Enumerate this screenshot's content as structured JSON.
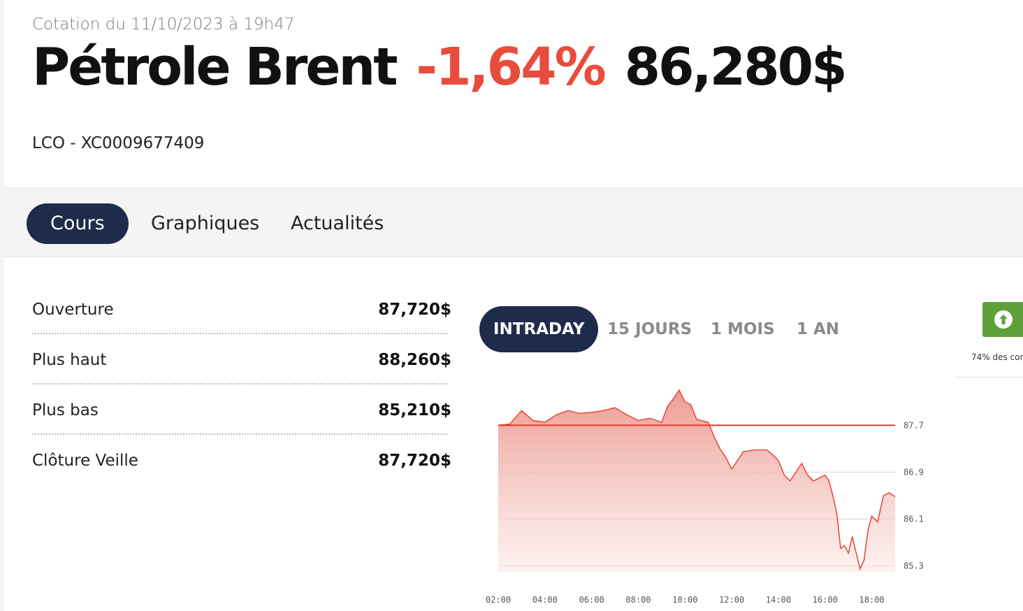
{
  "header": {
    "quote_date": "Cotation du 11/10/2023 à 19h47",
    "name": "Pétrole Brent",
    "change": "-1,64%",
    "price": "86,280$",
    "isin": "LCO - XC0009677409"
  },
  "tabs": [
    {
      "label": "Cours",
      "active": true
    },
    {
      "label": "Graphiques",
      "active": false
    },
    {
      "label": "Actualités",
      "active": false
    }
  ],
  "stats": [
    {
      "label": "Ouverture",
      "value": "87,720$"
    },
    {
      "label": "Plus haut",
      "value": "88,260$"
    },
    {
      "label": "Plus bas",
      "value": "85,210$"
    },
    {
      "label": "Clôture Veille",
      "value": "87,720$"
    }
  ],
  "period_tabs": [
    {
      "label": "INTRADAY",
      "active": true
    },
    {
      "label": "15 JOURS",
      "active": false
    },
    {
      "label": "1 MOIS",
      "active": false
    },
    {
      "label": "1 AN",
      "active": false
    }
  ],
  "side_widget": {
    "icon": "arrow-up-circle-icon",
    "text": "74% des con"
  },
  "colors": {
    "accent_navy": "#1f2b4a",
    "negative_red": "#e84c3d",
    "button_green": "#5fa03a"
  },
  "chart_data": {
    "type": "area",
    "x_tick_labels": [
      "02:00",
      "04:00",
      "06:00",
      "08:00",
      "10:00",
      "12:00",
      "14:00",
      "16:00",
      "18:00"
    ],
    "y_tick_labels": [
      "87.7",
      "86.9",
      "86.1",
      "85.3"
    ],
    "ylim": [
      85.2,
      88.3
    ],
    "reference_line": 87.7,
    "grid": true,
    "x": [
      "02:00",
      "02:30",
      "03:00",
      "03:30",
      "04:00",
      "04:30",
      "05:00",
      "05:30",
      "06:00",
      "06:30",
      "07:00",
      "07:30",
      "08:00",
      "08:30",
      "09:00",
      "09:15",
      "09:30",
      "09:45",
      "10:00",
      "10:15",
      "10:30",
      "11:00",
      "11:15",
      "11:30",
      "11:45",
      "12:00",
      "12:30",
      "13:00",
      "13:30",
      "13:45",
      "14:00",
      "14:15",
      "14:30",
      "14:45",
      "15:00",
      "15:15",
      "15:30",
      "15:45",
      "16:00",
      "16:10",
      "16:20",
      "16:30",
      "16:40",
      "16:50",
      "17:00",
      "17:10",
      "17:20",
      "17:30",
      "17:40",
      "17:50",
      "18:00",
      "18:15",
      "18:30",
      "18:45",
      "19:00"
    ],
    "values": [
      87.7,
      87.72,
      87.95,
      87.78,
      87.75,
      87.88,
      87.95,
      87.9,
      87.92,
      87.95,
      88.0,
      87.88,
      87.78,
      87.82,
      87.75,
      88.02,
      88.15,
      88.3,
      88.1,
      88.05,
      87.8,
      87.75,
      87.5,
      87.3,
      87.15,
      86.95,
      87.25,
      87.28,
      87.28,
      87.2,
      87.1,
      86.85,
      86.75,
      86.9,
      87.05,
      86.85,
      86.75,
      86.8,
      86.85,
      86.75,
      86.5,
      86.2,
      85.6,
      85.65,
      85.52,
      85.8,
      85.52,
      85.25,
      85.4,
      85.9,
      86.15,
      86.05,
      86.5,
      86.55,
      86.48
    ]
  }
}
